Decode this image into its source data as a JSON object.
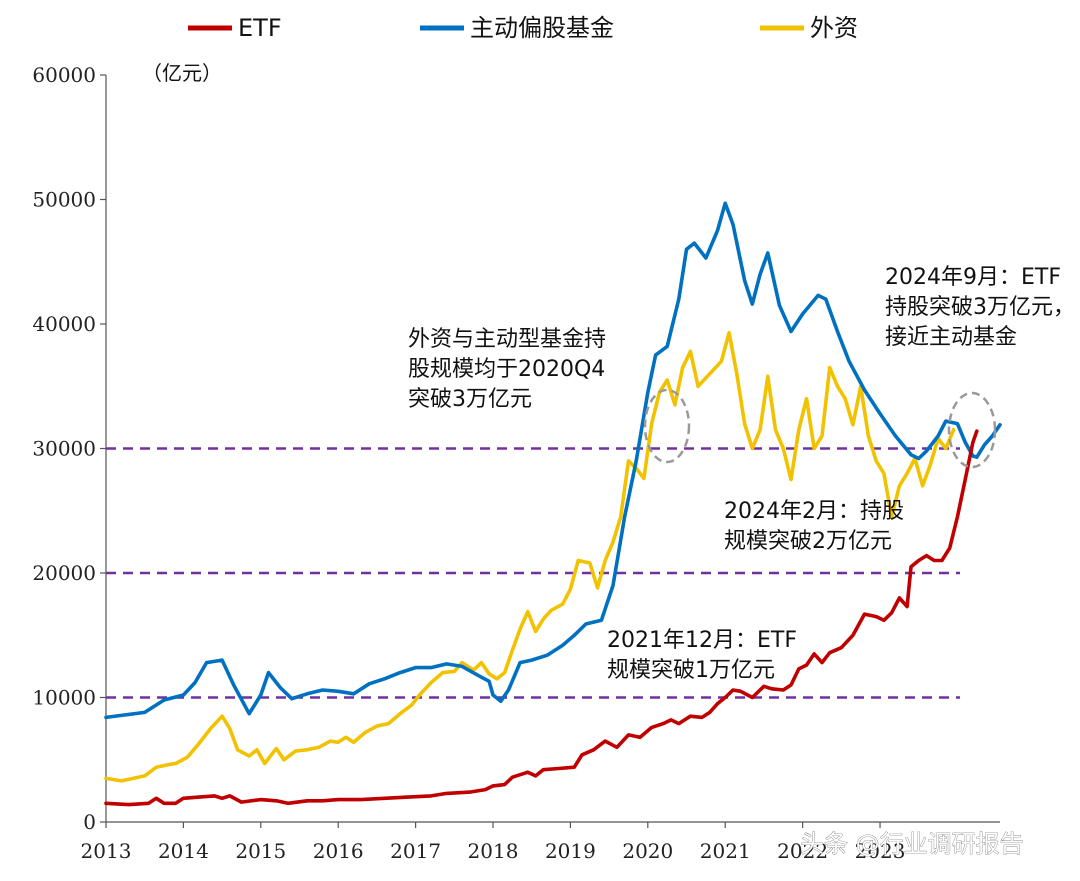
{
  "chart_data": {
    "type": "line",
    "title": "",
    "xlabel": "",
    "ylabel": "",
    "unit_label": "（亿元）",
    "ylim": [
      0,
      60000
    ],
    "yticks": [
      0,
      10000,
      20000,
      30000,
      40000,
      50000,
      60000
    ],
    "ytick_labels": [
      "0",
      "10000",
      "20000",
      "30000",
      "40000",
      "50000",
      "60000"
    ],
    "xlim": [
      2013,
      2024.55
    ],
    "xticks": [
      2013,
      2014,
      2015,
      2016,
      2017,
      2018,
      2019,
      2020,
      2021,
      2022,
      2023
    ],
    "xtick_labels": [
      "2013",
      "2014",
      "2015",
      "2016",
      "2017",
      "2018",
      "2019",
      "2020",
      "2021",
      "2022",
      "2023"
    ],
    "grid": false,
    "legend_position": "top",
    "series": [
      {
        "name": "ETF",
        "color": "#c00000",
        "points": [
          [
            2013.0,
            1500
          ],
          [
            2013.3,
            1400
          ],
          [
            2013.55,
            1500
          ],
          [
            2013.65,
            1900
          ],
          [
            2013.75,
            1500
          ],
          [
            2013.9,
            1500
          ],
          [
            2014.0,
            1900
          ],
          [
            2014.2,
            2000
          ],
          [
            2014.4,
            2100
          ],
          [
            2014.5,
            1900
          ],
          [
            2014.6,
            2100
          ],
          [
            2014.75,
            1600
          ],
          [
            2015.0,
            1800
          ],
          [
            2015.2,
            1700
          ],
          [
            2015.35,
            1500
          ],
          [
            2015.6,
            1700
          ],
          [
            2015.8,
            1700
          ],
          [
            2016.0,
            1800
          ],
          [
            2016.3,
            1800
          ],
          [
            2016.6,
            1900
          ],
          [
            2016.9,
            2000
          ],
          [
            2017.2,
            2100
          ],
          [
            2017.4,
            2300
          ],
          [
            2017.7,
            2400
          ],
          [
            2017.9,
            2600
          ],
          [
            2018.0,
            2900
          ],
          [
            2018.15,
            3000
          ],
          [
            2018.25,
            3600
          ],
          [
            2018.45,
            4000
          ],
          [
            2018.55,
            3700
          ],
          [
            2018.65,
            4200
          ],
          [
            2018.85,
            4300
          ],
          [
            2019.05,
            4400
          ],
          [
            2019.15,
            5400
          ],
          [
            2019.3,
            5800
          ],
          [
            2019.45,
            6500
          ],
          [
            2019.6,
            6000
          ],
          [
            2019.75,
            7000
          ],
          [
            2019.9,
            6800
          ],
          [
            2020.05,
            7600
          ],
          [
            2020.2,
            7900
          ],
          [
            2020.3,
            8200
          ],
          [
            2020.4,
            7900
          ],
          [
            2020.55,
            8500
          ],
          [
            2020.7,
            8400
          ],
          [
            2020.8,
            8800
          ],
          [
            2020.9,
            9500
          ],
          [
            2021.0,
            10000
          ],
          [
            2021.1,
            10600
          ],
          [
            2021.2,
            10500
          ],
          [
            2021.35,
            10000
          ],
          [
            2021.5,
            10900
          ],
          [
            2021.6,
            10700
          ],
          [
            2021.75,
            10600
          ],
          [
            2021.85,
            11000
          ],
          [
            2021.95,
            12300
          ],
          [
            2022.05,
            12600
          ],
          [
            2022.15,
            13500
          ],
          [
            2022.25,
            12800
          ],
          [
            2022.35,
            13600
          ],
          [
            2022.5,
            14000
          ],
          [
            2022.65,
            15000
          ],
          [
            2022.8,
            16700
          ],
          [
            2022.95,
            16500
          ],
          [
            2023.05,
            16200
          ],
          [
            2023.15,
            16800
          ],
          [
            2023.25,
            18000
          ],
          [
            2023.35,
            17300
          ],
          [
            2023.4,
            20500
          ],
          [
            2023.5,
            21000
          ],
          [
            2023.6,
            21400
          ],
          [
            2023.7,
            21000
          ],
          [
            2023.8,
            21000
          ],
          [
            2023.9,
            22000
          ],
          [
            2024.0,
            24500
          ],
          [
            2024.1,
            27500
          ],
          [
            2024.2,
            30500
          ],
          [
            2024.25,
            31400
          ]
        ]
      },
      {
        "name": "主动偏股基金",
        "color": "#0070c0",
        "points": [
          [
            2013.0,
            8400
          ],
          [
            2013.25,
            8600
          ],
          [
            2013.5,
            8800
          ],
          [
            2013.75,
            9800
          ],
          [
            2014.0,
            10200
          ],
          [
            2014.15,
            11200
          ],
          [
            2014.3,
            12800
          ],
          [
            2014.5,
            13000
          ],
          [
            2014.65,
            11000
          ],
          [
            2014.85,
            8700
          ],
          [
            2015.0,
            10200
          ],
          [
            2015.1,
            12000
          ],
          [
            2015.25,
            10800
          ],
          [
            2015.4,
            9900
          ],
          [
            2015.6,
            10300
          ],
          [
            2015.8,
            10600
          ],
          [
            2016.0,
            10500
          ],
          [
            2016.2,
            10300
          ],
          [
            2016.4,
            11100
          ],
          [
            2016.6,
            11500
          ],
          [
            2016.8,
            12000
          ],
          [
            2017.0,
            12400
          ],
          [
            2017.2,
            12400
          ],
          [
            2017.4,
            12700
          ],
          [
            2017.6,
            12500
          ],
          [
            2017.8,
            11800
          ],
          [
            2017.95,
            11300
          ],
          [
            2018.0,
            10200
          ],
          [
            2018.1,
            9700
          ],
          [
            2018.2,
            10600
          ],
          [
            2018.35,
            12800
          ],
          [
            2018.5,
            13000
          ],
          [
            2018.7,
            13400
          ],
          [
            2018.9,
            14200
          ],
          [
            2019.05,
            15000
          ],
          [
            2019.2,
            15900
          ],
          [
            2019.4,
            16200
          ],
          [
            2019.55,
            19000
          ],
          [
            2019.7,
            24500
          ],
          [
            2019.85,
            29000
          ],
          [
            2020.0,
            34500
          ],
          [
            2020.1,
            37500
          ],
          [
            2020.25,
            38200
          ],
          [
            2020.4,
            42000
          ],
          [
            2020.5,
            46000
          ],
          [
            2020.6,
            46500
          ],
          [
            2020.75,
            45300
          ],
          [
            2020.9,
            47500
          ],
          [
            2021.0,
            49700
          ],
          [
            2021.1,
            48000
          ],
          [
            2021.25,
            43500
          ],
          [
            2021.35,
            41600
          ],
          [
            2021.45,
            44000
          ],
          [
            2021.55,
            45700
          ],
          [
            2021.7,
            41500
          ],
          [
            2021.85,
            39400
          ],
          [
            2022.0,
            40800
          ],
          [
            2022.2,
            42300
          ],
          [
            2022.3,
            42000
          ],
          [
            2022.45,
            39400
          ],
          [
            2022.6,
            37000
          ],
          [
            2022.8,
            34700
          ],
          [
            2023.0,
            32800
          ],
          [
            2023.2,
            31000
          ],
          [
            2023.4,
            29500
          ],
          [
            2023.5,
            29200
          ],
          [
            2023.6,
            29800
          ],
          [
            2023.75,
            31000
          ],
          [
            2023.85,
            32200
          ],
          [
            2024.0,
            32000
          ],
          [
            2024.1,
            30500
          ],
          [
            2024.2,
            29400
          ],
          [
            2024.25,
            29300
          ],
          [
            2024.35,
            30300
          ],
          [
            2024.45,
            31000
          ],
          [
            2024.55,
            31900
          ]
        ]
      },
      {
        "name": "外资",
        "color": "#f2c200",
        "points": [
          [
            2013.0,
            3500
          ],
          [
            2013.2,
            3300
          ],
          [
            2013.35,
            3500
          ],
          [
            2013.5,
            3700
          ],
          [
            2013.65,
            4400
          ],
          [
            2013.8,
            4600
          ],
          [
            2013.9,
            4700
          ],
          [
            2014.05,
            5200
          ],
          [
            2014.2,
            6300
          ],
          [
            2014.35,
            7500
          ],
          [
            2014.5,
            8500
          ],
          [
            2014.6,
            7500
          ],
          [
            2014.7,
            5800
          ],
          [
            2014.85,
            5300
          ],
          [
            2014.95,
            5800
          ],
          [
            2015.05,
            4700
          ],
          [
            2015.2,
            5900
          ],
          [
            2015.3,
            5000
          ],
          [
            2015.45,
            5700
          ],
          [
            2015.6,
            5800
          ],
          [
            2015.75,
            6000
          ],
          [
            2015.9,
            6500
          ],
          [
            2016.0,
            6400
          ],
          [
            2016.1,
            6800
          ],
          [
            2016.2,
            6400
          ],
          [
            2016.35,
            7200
          ],
          [
            2016.5,
            7700
          ],
          [
            2016.65,
            7900
          ],
          [
            2016.8,
            8700
          ],
          [
            2016.95,
            9400
          ],
          [
            2017.05,
            10200
          ],
          [
            2017.2,
            11200
          ],
          [
            2017.35,
            12000
          ],
          [
            2017.5,
            12100
          ],
          [
            2017.6,
            12800
          ],
          [
            2017.75,
            12200
          ],
          [
            2017.85,
            12800
          ],
          [
            2017.95,
            11900
          ],
          [
            2018.05,
            11500
          ],
          [
            2018.15,
            12000
          ],
          [
            2018.25,
            13800
          ],
          [
            2018.35,
            15500
          ],
          [
            2018.45,
            16900
          ],
          [
            2018.55,
            15300
          ],
          [
            2018.65,
            16300
          ],
          [
            2018.75,
            17000
          ],
          [
            2018.9,
            17500
          ],
          [
            2019.0,
            18700
          ],
          [
            2019.1,
            21000
          ],
          [
            2019.25,
            20800
          ],
          [
            2019.35,
            18800
          ],
          [
            2019.45,
            21000
          ],
          [
            2019.55,
            22500
          ],
          [
            2019.65,
            24500
          ],
          [
            2019.75,
            29000
          ],
          [
            2019.85,
            28400
          ],
          [
            2019.95,
            27600
          ],
          [
            2020.05,
            32000
          ],
          [
            2020.15,
            34500
          ],
          [
            2020.25,
            35500
          ],
          [
            2020.35,
            33500
          ],
          [
            2020.45,
            36500
          ],
          [
            2020.55,
            37800
          ],
          [
            2020.65,
            35000
          ],
          [
            2020.8,
            36000
          ],
          [
            2020.95,
            37000
          ],
          [
            2021.05,
            39300
          ],
          [
            2021.15,
            36000
          ],
          [
            2021.25,
            32000
          ],
          [
            2021.35,
            30000
          ],
          [
            2021.45,
            31500
          ],
          [
            2021.55,
            35800
          ],
          [
            2021.65,
            31500
          ],
          [
            2021.75,
            30000
          ],
          [
            2021.85,
            27500
          ],
          [
            2021.95,
            31500
          ],
          [
            2022.05,
            34000
          ],
          [
            2022.15,
            30000
          ],
          [
            2022.25,
            31000
          ],
          [
            2022.35,
            36500
          ],
          [
            2022.45,
            35000
          ],
          [
            2022.55,
            34000
          ],
          [
            2022.65,
            31900
          ],
          [
            2022.75,
            35000
          ],
          [
            2022.85,
            31000
          ],
          [
            2022.95,
            29000
          ],
          [
            2023.05,
            28000
          ],
          [
            2023.15,
            24500
          ],
          [
            2023.25,
            27000
          ],
          [
            2023.35,
            28000
          ],
          [
            2023.45,
            29200
          ],
          [
            2023.55,
            27000
          ],
          [
            2023.65,
            28700
          ],
          [
            2023.75,
            30800
          ],
          [
            2023.85,
            30000
          ],
          [
            2023.95,
            31500
          ]
        ]
      }
    ],
    "reference_lines": [
      {
        "y": 10000,
        "color": "#7030a0",
        "style": "dashed"
      },
      {
        "y": 20000,
        "color": "#7030a0",
        "style": "dashed"
      },
      {
        "y": 30000,
        "color": "#7030a0",
        "style": "dashed"
      }
    ],
    "annotations": [
      {
        "name": "annotation-2020q4",
        "lines": [
          "外资与主动型基金持",
          "股规模均于2020Q4",
          "突破3万亿元"
        ]
      },
      {
        "name": "annotation-2024-09",
        "lines": [
          "2024年9月：ETF",
          "持股突破3万亿元，",
          "接近主动基金"
        ]
      },
      {
        "name": "annotation-2024-02",
        "lines": [
          "2024年2月：持股",
          "规模突破2万亿元"
        ]
      },
      {
        "name": "annotation-2021-12",
        "lines": [
          "2021年12月：ETF",
          "规模突破1万亿元"
        ]
      }
    ],
    "watermark": "头条 @行业调研报告"
  }
}
